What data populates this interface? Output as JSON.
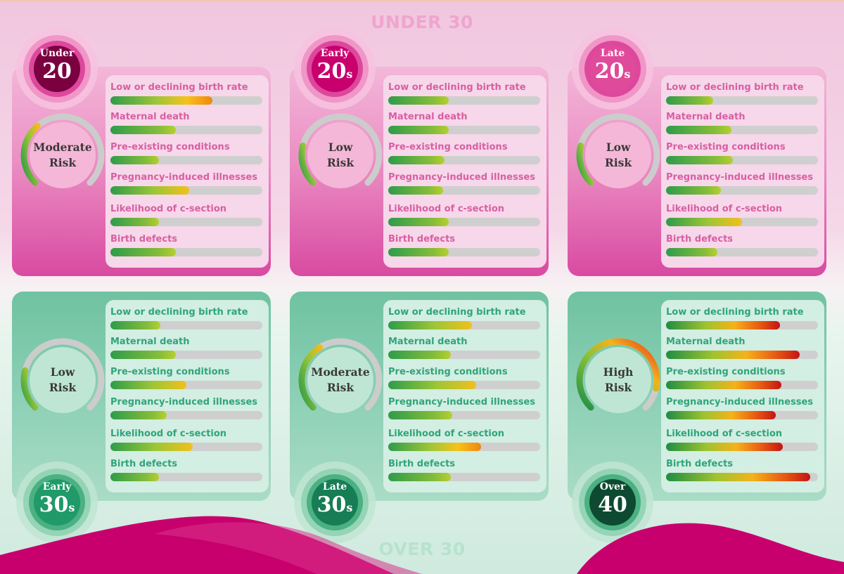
{
  "titles": {
    "top": "UNDER 30",
    "bottom": "OVER 30"
  },
  "chart_data": {
    "type": "bar",
    "metrics": [
      "Low or declining birth rate",
      "Maternal death",
      "Pre-existing conditions",
      "Pregnancy-induced illnesses",
      "Likelihood of c-section",
      "Birth defects"
    ],
    "xlim": [
      0,
      100
    ],
    "panels": [
      {
        "age_small": "Under",
        "age_big": "20",
        "age_suffix": "",
        "risk_line1": "Moderate",
        "risk_line2": "Risk",
        "risk_level": 0.35,
        "theme": "pink",
        "values": [
          67,
          43,
          32,
          52,
          32,
          43
        ]
      },
      {
        "age_small": "Early",
        "age_big": "20",
        "age_suffix": "s",
        "risk_line1": "Low",
        "risk_line2": "Risk",
        "risk_level": 0.22,
        "theme": "pink",
        "values": [
          40,
          40,
          37,
          36,
          40,
          40
        ]
      },
      {
        "age_small": "Late",
        "age_big": "20",
        "age_suffix": "s",
        "risk_line1": "Low",
        "risk_line2": "Risk",
        "risk_level": 0.22,
        "theme": "pink",
        "values": [
          31,
          43,
          44,
          36,
          50,
          34
        ]
      },
      {
        "age_small": "Early",
        "age_big": "30",
        "age_suffix": "s",
        "risk_line1": "Low",
        "risk_line2": "Risk",
        "risk_level": 0.22,
        "theme": "green",
        "values": [
          33,
          43,
          50,
          37,
          54,
          32
        ]
      },
      {
        "age_small": "Late",
        "age_big": "30",
        "age_suffix": "s",
        "risk_line1": "Moderate",
        "risk_line2": "Risk",
        "risk_level": 0.38,
        "theme": "green",
        "values": [
          55,
          41,
          58,
          42,
          61,
          41
        ]
      },
      {
        "age_small": "Over",
        "age_big": "40",
        "age_suffix": "",
        "risk_line1": "High",
        "risk_line2": "Risk",
        "risk_level": 0.88,
        "theme": "green",
        "values": [
          75,
          88,
          76,
          72,
          77,
          95
        ]
      }
    ]
  },
  "colors": {
    "pink_title": "#efa5ce",
    "green_title": "#b7e2cf",
    "magenta_wave": "#c8006e",
    "gauge_track": "#cccccc"
  }
}
